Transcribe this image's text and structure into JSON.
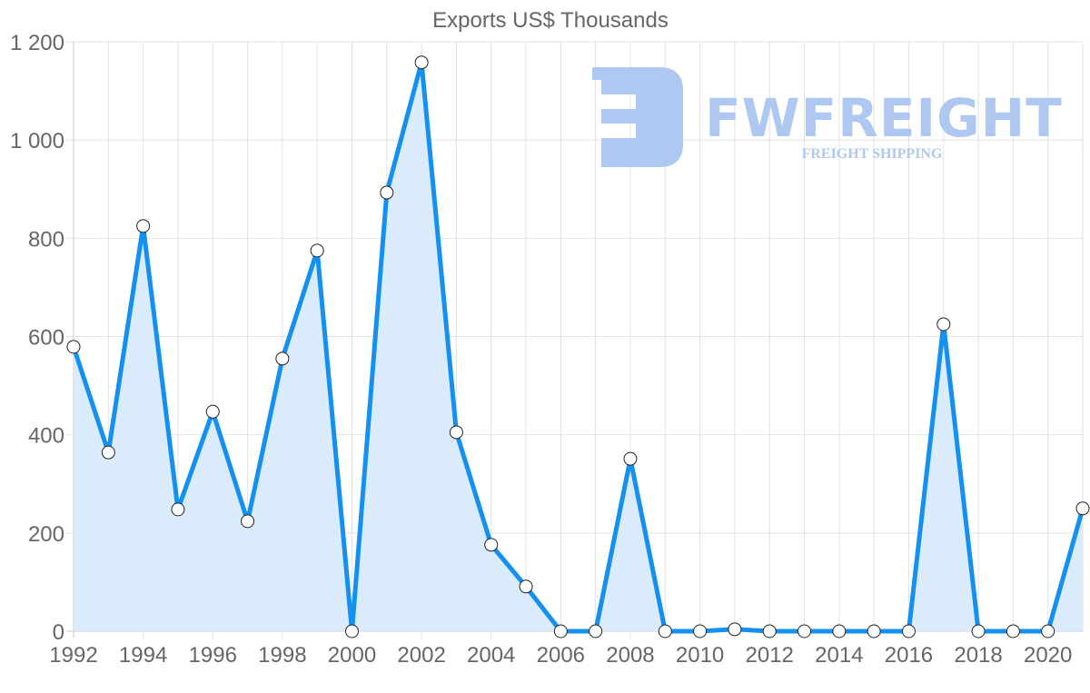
{
  "chart_data": {
    "type": "line",
    "title": "Exports US$ Thousands",
    "xlabel": "",
    "ylabel": "",
    "x": [
      1992,
      1993,
      1994,
      1995,
      1996,
      1997,
      1998,
      1999,
      2000,
      2001,
      2002,
      2003,
      2004,
      2005,
      2006,
      2007,
      2008,
      2009,
      2010,
      2011,
      2012,
      2013,
      2014,
      2015,
      2016,
      2017,
      2018,
      2019,
      2020,
      2021
    ],
    "series": [
      {
        "name": "Exports US$ Thousands",
        "values": [
          579,
          364,
          825,
          248,
          447,
          224,
          555,
          775,
          0,
          893,
          1158,
          405,
          176,
          91,
          0,
          0,
          351,
          0,
          0,
          4,
          0,
          0,
          0,
          0,
          0,
          625,
          0,
          0,
          0,
          250
        ],
        "color": "#1490f0",
        "fill": "#d8ebfc"
      }
    ],
    "x_tick_labels": [
      "1992",
      "1994",
      "1996",
      "1998",
      "2000",
      "2002",
      "2004",
      "2006",
      "2008",
      "2010",
      "2012",
      "2014",
      "2016",
      "2018",
      "2020"
    ],
    "y_tick_labels": [
      "0",
      "200",
      "400",
      "600",
      "800",
      "1 000",
      "1 200"
    ],
    "y_ticks": [
      0,
      200,
      400,
      600,
      800,
      1000,
      1200
    ],
    "ylim": [
      0,
      1200
    ],
    "xlim": [
      1992,
      2021
    ],
    "grid": true,
    "legend": "none"
  },
  "watermark": {
    "brand": "FWFREIGHT",
    "tagline": "FREIGHT SHIPPING",
    "color": "#aec8f2"
  }
}
